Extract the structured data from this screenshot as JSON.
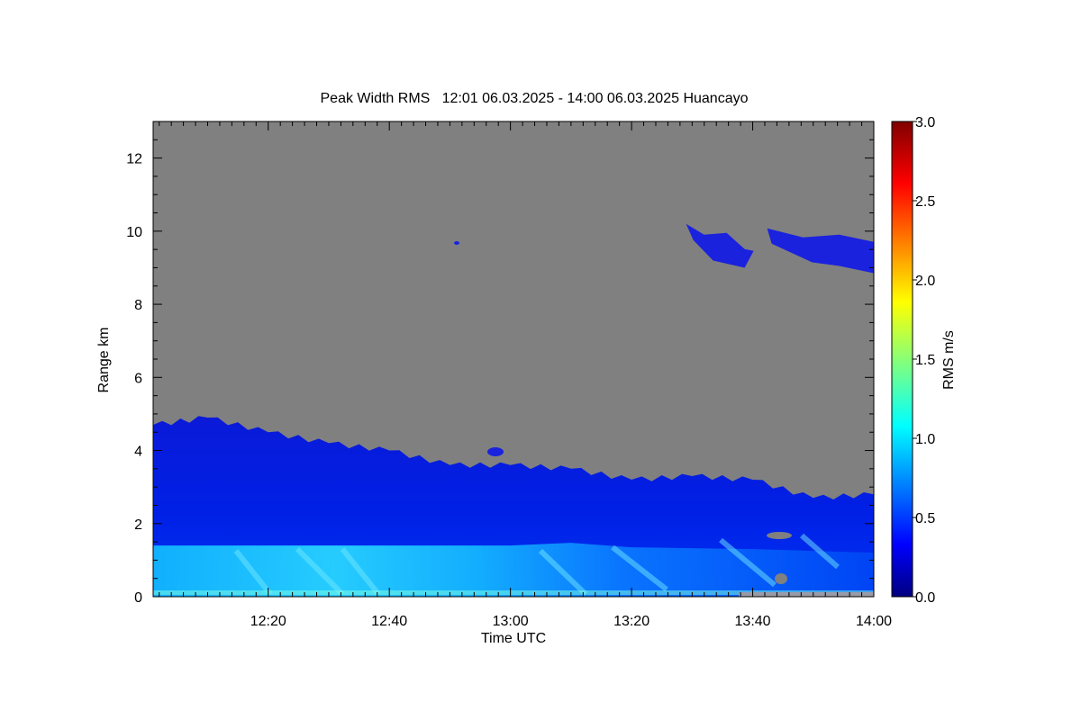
{
  "chart_data": {
    "type": "heatmap",
    "title": "Peak Width RMS   12:01 06.03.2025 - 14:00 06.03.2025 Huancayo",
    "xlabel": "Time UTC",
    "ylabel": "Range km",
    "xlim": [
      "12:01",
      "14:00"
    ],
    "ylim": [
      0,
      13
    ],
    "x_ticks": [
      "12:20",
      "12:40",
      "13:00",
      "13:20",
      "13:40",
      "14:00"
    ],
    "y_ticks": [
      "0",
      "2",
      "4",
      "6",
      "8",
      "10",
      "12"
    ],
    "colorbar": {
      "label": "RMS m/s",
      "range": [
        0.0,
        3.0
      ],
      "ticks": [
        "0.0",
        "0.5",
        "1.0",
        "1.5",
        "2.0",
        "2.5",
        "3.0"
      ],
      "colormap": "jet"
    },
    "no_data_color": "#808080",
    "signal_top_km": [
      {
        "time": "12:01",
        "range_km": 4.7
      },
      {
        "time": "12:10",
        "range_km": 4.9
      },
      {
        "time": "12:20",
        "range_km": 4.5
      },
      {
        "time": "12:30",
        "range_km": 4.2
      },
      {
        "time": "12:40",
        "range_km": 4.0
      },
      {
        "time": "12:50",
        "range_km": 3.6
      },
      {
        "time": "13:00",
        "range_km": 3.6
      },
      {
        "time": "13:10",
        "range_km": 3.5
      },
      {
        "time": "13:20",
        "range_km": 3.2
      },
      {
        "time": "13:30",
        "range_km": 3.3
      },
      {
        "time": "13:40",
        "range_km": 3.2
      },
      {
        "time": "13:50",
        "range_km": 2.7
      },
      {
        "time": "14:00",
        "range_km": 2.8
      }
    ],
    "high_layer": {
      "time_start": "13:29",
      "time_end": "14:00",
      "range_km": [
        9.0,
        10.2
      ],
      "rms_ms": 0.2
    },
    "boundary_layer_enhanced": {
      "range_km": [
        0.0,
        1.4
      ],
      "rms_ms": [
        0.6,
        1.1
      ]
    }
  }
}
